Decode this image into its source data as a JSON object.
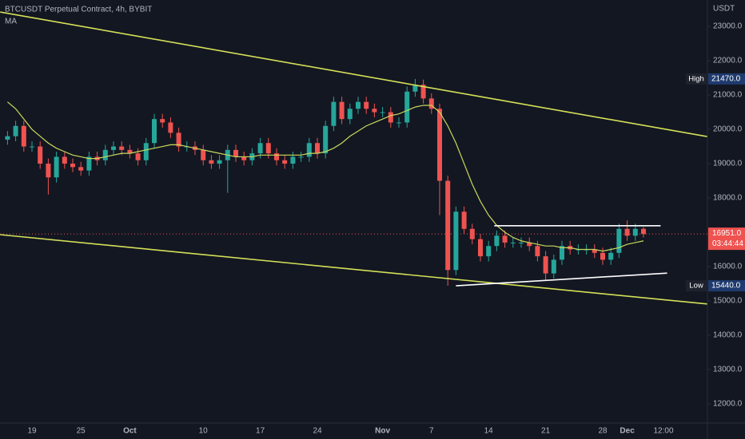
{
  "chart_data": {
    "type": "candlestick",
    "title": "BTCUSDT Perpetual Contract, 4h, BYBIT",
    "indicator_label": "MA",
    "currency_label": "USDT",
    "up_color": "#26a69a",
    "down_color": "#ef5350",
    "ma_color": "#c9d95a",
    "grid": false,
    "categories": [
      null,
      null,
      null,
      "19",
      null,
      null,
      null,
      null,
      null,
      "25",
      null,
      null,
      null,
      null,
      null,
      "Oct",
      null,
      null,
      null,
      null,
      null,
      null,
      null,
      null,
      "10",
      null,
      null,
      null,
      null,
      null,
      null,
      "17",
      null,
      null,
      null,
      null,
      null,
      null,
      "24",
      null,
      null,
      null,
      null,
      null,
      null,
      null,
      "Nov",
      null,
      null,
      null,
      null,
      null,
      "7",
      null,
      null,
      null,
      null,
      null,
      null,
      "14",
      null,
      null,
      null,
      null,
      null,
      null,
      "21",
      null,
      null,
      null,
      null,
      null,
      null,
      "28",
      null,
      null,
      "Dec",
      null,
      null
    ],
    "extra_time_label": "12:00",
    "open": [
      19700,
      19800,
      20100,
      19500,
      19500,
      19000,
      18600,
      19200,
      19000,
      18900,
      18800,
      19200,
      19100,
      19400,
      19500,
      19400,
      19300,
      19100,
      19600,
      20300,
      20200,
      19900,
      19500,
      19500,
      19400,
      19100,
      19000,
      19100,
      19400,
      19200,
      19100,
      19300,
      19600,
      19300,
      19100,
      19000,
      19200,
      19200,
      19600,
      19300,
      20100,
      20800,
      20300,
      20600,
      20800,
      20600,
      20500,
      20500,
      20200,
      20200,
      21100,
      21300,
      20900,
      20600,
      18500,
      15900,
      17600,
      17100,
      16800,
      16300,
      16600,
      16900,
      16700,
      16700,
      16700,
      16600,
      16300,
      15800,
      16200,
      16600,
      16500,
      16500,
      16500,
      16400,
      16200,
      16400,
      17100,
      16900,
      17100
    ],
    "high": [
      19950,
      20250,
      20250,
      19650,
      19650,
      19150,
      19350,
      19350,
      19150,
      19050,
      19350,
      19350,
      19550,
      19650,
      19650,
      19550,
      19450,
      19750,
      20450,
      20450,
      20350,
      20050,
      19650,
      19650,
      19550,
      19250,
      19250,
      19550,
      19550,
      19350,
      19450,
      19750,
      19750,
      19450,
      19250,
      19350,
      19350,
      19750,
      19750,
      20250,
      20950,
      20950,
      20750,
      20950,
      20950,
      20750,
      20650,
      20650,
      20350,
      21250,
      21470,
      21450,
      21050,
      20750,
      18650,
      17750,
      17750,
      17250,
      16950,
      16750,
      17050,
      17050,
      16850,
      16850,
      16850,
      16750,
      16450,
      16350,
      16750,
      16750,
      16650,
      16650,
      16650,
      16550,
      16550,
      17250,
      17350,
      17250,
      17150
    ],
    "low": [
      19550,
      19650,
      19350,
      19350,
      18850,
      18100,
      18450,
      18850,
      18750,
      18650,
      18650,
      18950,
      18950,
      19250,
      19250,
      19150,
      18950,
      18950,
      19450,
      20050,
      19750,
      19350,
      19350,
      19250,
      18950,
      18850,
      18850,
      18150,
      19050,
      18950,
      18950,
      19150,
      19150,
      18950,
      18850,
      18850,
      19050,
      19050,
      19150,
      19150,
      19950,
      20150,
      20150,
      20450,
      20450,
      20350,
      20350,
      20050,
      20050,
      20050,
      20950,
      20750,
      20450,
      17500,
      15440,
      15750,
      16950,
      16650,
      16150,
      16150,
      16450,
      16550,
      16550,
      16550,
      16450,
      16150,
      15600,
      15650,
      16050,
      16350,
      16350,
      16350,
      16250,
      16050,
      16050,
      16250,
      16750,
      16750,
      16850
    ],
    "close": [
      19800,
      20100,
      19500,
      19500,
      19000,
      18600,
      19200,
      19000,
      18900,
      18800,
      19200,
      19100,
      19400,
      19500,
      19400,
      19300,
      19100,
      19600,
      20300,
      20200,
      19900,
      19500,
      19500,
      19400,
      19100,
      19000,
      19100,
      19400,
      19200,
      19100,
      19300,
      19600,
      19300,
      19100,
      19000,
      19200,
      19200,
      19600,
      19300,
      20100,
      20800,
      20300,
      20600,
      20800,
      20600,
      20500,
      20500,
      20200,
      20200,
      21100,
      21300,
      20900,
      20600,
      18500,
      15900,
      17600,
      17100,
      16800,
      16300,
      16600,
      16900,
      16700,
      16700,
      16700,
      16600,
      16300,
      15800,
      16200,
      16600,
      16500,
      16500,
      16500,
      16400,
      16200,
      16400,
      17100,
      16900,
      17100,
      16950
    ],
    "ma": [
      20800,
      20600,
      20300,
      20000,
      19800,
      19600,
      19450,
      19350,
      19250,
      19200,
      19150,
      19150,
      19200,
      19250,
      19300,
      19300,
      19350,
      19400,
      19450,
      19500,
      19550,
      19550,
      19500,
      19450,
      19400,
      19350,
      19300,
      19250,
      19200,
      19200,
      19200,
      19250,
      19250,
      19250,
      19250,
      19250,
      19250,
      19300,
      19300,
      19350,
      19450,
      19600,
      19800,
      19950,
      20100,
      20200,
      20300,
      20400,
      20450,
      20550,
      20650,
      20700,
      20700,
      20500,
      20100,
      19600,
      19000,
      18400,
      17900,
      17500,
      17200,
      17000,
      16850,
      16750,
      16700,
      16650,
      16600,
      16600,
      16550,
      16550,
      16500,
      16500,
      16500,
      16450,
      16500,
      16550,
      16650,
      16700,
      16750
    ],
    "ylim": [
      11440,
      23770
    ],
    "yticks": [
      {
        "value": 12000,
        "label": "12000.0"
      },
      {
        "value": 13000,
        "label": "13000.0"
      },
      {
        "value": 14000,
        "label": "14000.0"
      },
      {
        "value": 15000,
        "label": "15000.0"
      },
      {
        "value": 16000,
        "label": "16000.0"
      },
      {
        "value": 17000,
        "label": "17000.0"
      },
      {
        "value": 18000,
        "label": "18000.0"
      },
      {
        "value": 19000,
        "label": "19000.0"
      },
      {
        "value": 20000,
        "label": "20000.0"
      },
      {
        "value": 21000,
        "label": "21000.0"
      },
      {
        "value": 22000,
        "label": "22000.0"
      },
      {
        "value": 23000,
        "label": "23000.0"
      }
    ],
    "high_marker": {
      "label": "High",
      "value": 21470,
      "value_label": "21470.0"
    },
    "low_marker": {
      "label": "Low",
      "value": 15440,
      "value_label": "15440.0"
    },
    "last_price": {
      "value": 16951,
      "value_label": "16951.0",
      "countdown": "03:44:44",
      "color": "#ef5350"
    },
    "drawings": [
      {
        "color": "#d4e157",
        "from": [
          -0.9,
          23420
        ],
        "to": [
          85.8,
          19790
        ]
      },
      {
        "color": "#d4e157",
        "from": [
          -0.9,
          16930
        ],
        "to": [
          85.8,
          14910
        ]
      },
      {
        "color": "#ffffff",
        "from": [
          59.7,
          17190
        ],
        "to": [
          80.1,
          17190
        ]
      },
      {
        "color": "#ffffff",
        "from": [
          55.0,
          15440
        ],
        "to": [
          80.9,
          15810
        ]
      }
    ]
  }
}
